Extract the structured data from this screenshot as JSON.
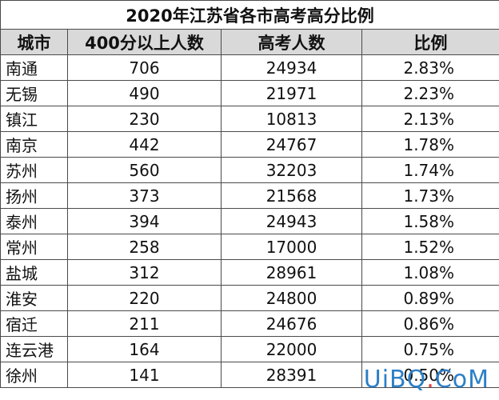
{
  "title": "2020年江苏省各市高考高分比例",
  "headers": [
    "城市",
    "400分以上人数",
    "高考人数",
    "比例"
  ],
  "rows": [
    {
      "city": "南通",
      "high": "706",
      "total": "24934",
      "ratio": "2.83%"
    },
    {
      "city": "无锡",
      "high": "490",
      "total": "21971",
      "ratio": "2.23%"
    },
    {
      "city": "镇江",
      "high": "230",
      "total": "10813",
      "ratio": "2.13%"
    },
    {
      "city": "南京",
      "high": "442",
      "total": "24767",
      "ratio": "1.78%"
    },
    {
      "city": "苏州",
      "high": "560",
      "total": "32203",
      "ratio": "1.74%"
    },
    {
      "city": "扬州",
      "high": "373",
      "total": "21568",
      "ratio": "1.73%"
    },
    {
      "city": "泰州",
      "high": "394",
      "total": "24943",
      "ratio": "1.58%"
    },
    {
      "city": "常州",
      "high": "258",
      "total": "17000",
      "ratio": "1.52%"
    },
    {
      "city": "盐城",
      "high": "312",
      "total": "28961",
      "ratio": "1.08%"
    },
    {
      "city": "淮安",
      "high": "220",
      "total": "24800",
      "ratio": "0.89%"
    },
    {
      "city": "宿迁",
      "high": "211",
      "total": "24676",
      "ratio": "0.86%"
    },
    {
      "city": "连云港",
      "high": "164",
      "total": "22000",
      "ratio": "0.75%"
    },
    {
      "city": "徐州",
      "high": "141",
      "total": "28391",
      "ratio": "0.50%"
    }
  ],
  "watermark": {
    "part1": "UiBQ",
    "dot": ".",
    "part2": "CoM"
  }
}
